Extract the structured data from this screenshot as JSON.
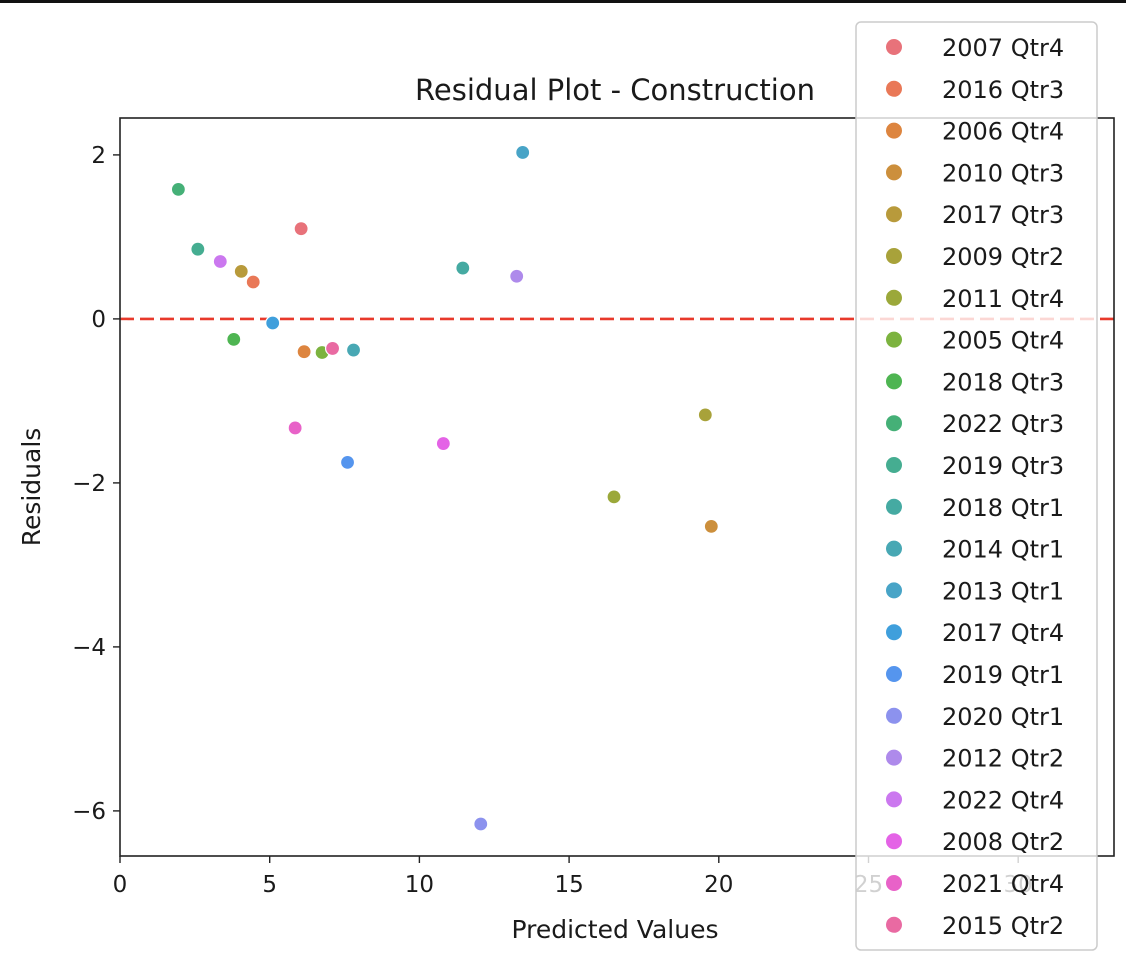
{
  "chart_data": {
    "type": "scatter",
    "title": "Residual Plot - Construction",
    "xlabel": "Predicted Values",
    "ylabel": "Residuals",
    "xlim": [
      0,
      33.2
    ],
    "ylim": [
      -6.55,
      2.45
    ],
    "x_ticks": [
      0,
      5,
      10,
      15,
      20,
      25,
      30
    ],
    "y_ticks": [
      -6,
      -4,
      -2,
      0,
      2
    ],
    "reference_line": {
      "y": 0,
      "color": "#e8392b",
      "style": "dashed"
    },
    "grid": false,
    "legend_placement": "right (overlapping plot edge)",
    "series": [
      {
        "name": "2007 Qtr4",
        "color": "#e8727a",
        "x": 6.05,
        "y": 1.1
      },
      {
        "name": "2016 Qtr3",
        "color": "#e97857",
        "x": 4.45,
        "y": 0.45
      },
      {
        "name": "2006 Qtr4",
        "color": "#dd853f",
        "x": 6.15,
        "y": -0.4
      },
      {
        "name": "2010 Qtr3",
        "color": "#cc8f3c",
        "x": 19.75,
        "y": -2.53
      },
      {
        "name": "2017 Qtr3",
        "color": "#b89a3b",
        "x": 4.05,
        "y": 0.58
      },
      {
        "name": "2009 Qtr2",
        "color": "#a8a23a",
        "x": 19.55,
        "y": -1.17
      },
      {
        "name": "2011 Qtr4",
        "color": "#9ba83a",
        "x": 16.5,
        "y": -2.17
      },
      {
        "name": "2005 Qtr4",
        "color": "#7cb33f",
        "x": 6.75,
        "y": -0.41
      },
      {
        "name": "2018 Qtr3",
        "color": "#4eb552",
        "x": 3.8,
        "y": -0.25
      },
      {
        "name": "2022 Qtr3",
        "color": "#45b077",
        "x": 1.95,
        "y": 1.58
      },
      {
        "name": "2019 Qtr3",
        "color": "#45ad91",
        "x": 2.6,
        "y": 0.85
      },
      {
        "name": "2018 Qtr1",
        "color": "#45aaa2",
        "x": 11.45,
        "y": 0.62
      },
      {
        "name": "2014 Qtr1",
        "color": "#48a8b4",
        "x": 7.8,
        "y": -0.38
      },
      {
        "name": "2013 Qtr1",
        "color": "#48a4c7",
        "x": 13.45,
        "y": 2.03
      },
      {
        "name": "2017 Qtr4",
        "color": "#3f9fdc",
        "x": 5.1,
        "y": -0.05
      },
      {
        "name": "2019 Qtr1",
        "color": "#5595ee",
        "x": 7.6,
        "y": -1.75
      },
      {
        "name": "2020 Qtr1",
        "color": "#8c92ee",
        "x": 12.05,
        "y": -6.16
      },
      {
        "name": "2012 Qtr2",
        "color": "#ae8aeb",
        "x": 13.25,
        "y": 0.52
      },
      {
        "name": "2022 Qtr4",
        "color": "#cb78ef",
        "x": 3.35,
        "y": 0.7
      },
      {
        "name": "2008 Qtr2",
        "color": "#e463e6",
        "x": 10.8,
        "y": -1.52
      },
      {
        "name": "2021 Qtr4",
        "color": "#e862c8",
        "x": 5.85,
        "y": -1.33
      },
      {
        "name": "2015 Qtr2",
        "color": "#e96aa2",
        "x": 7.1,
        "y": -0.36
      }
    ]
  }
}
